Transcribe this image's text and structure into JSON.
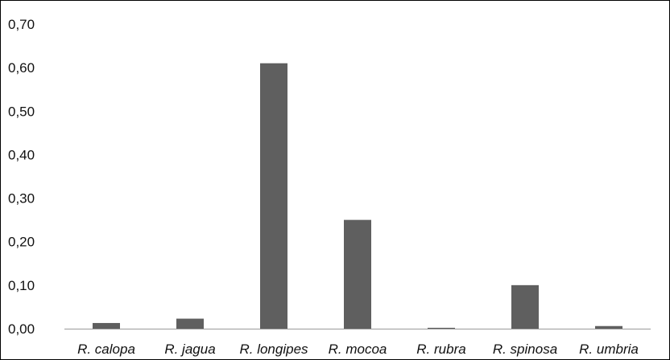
{
  "chart_data": {
    "type": "bar",
    "title": "",
    "xlabel": "",
    "ylabel": "",
    "categories": [
      "R. calopa",
      "R. jagua",
      "R. longipes",
      "R. mocoa",
      "R. rubra",
      "R. spinosa",
      "R. umbria"
    ],
    "values": [
      0.013,
      0.023,
      0.61,
      0.25,
      0.002,
      0.1,
      0.006
    ],
    "ylim": [
      0,
      0.7
    ],
    "yticks": [
      0,
      0.1,
      0.2,
      0.3,
      0.4,
      0.5,
      0.6,
      0.7
    ],
    "ytick_labels": [
      "0,00",
      "0,10",
      "0,20",
      "0,30",
      "0,40",
      "0,50",
      "0,60",
      "0,70"
    ],
    "grid": false,
    "legend": "none",
    "colors": {
      "bar": "#5f5f5f",
      "axis": "#9a9a9a",
      "frame": "#000000"
    }
  }
}
